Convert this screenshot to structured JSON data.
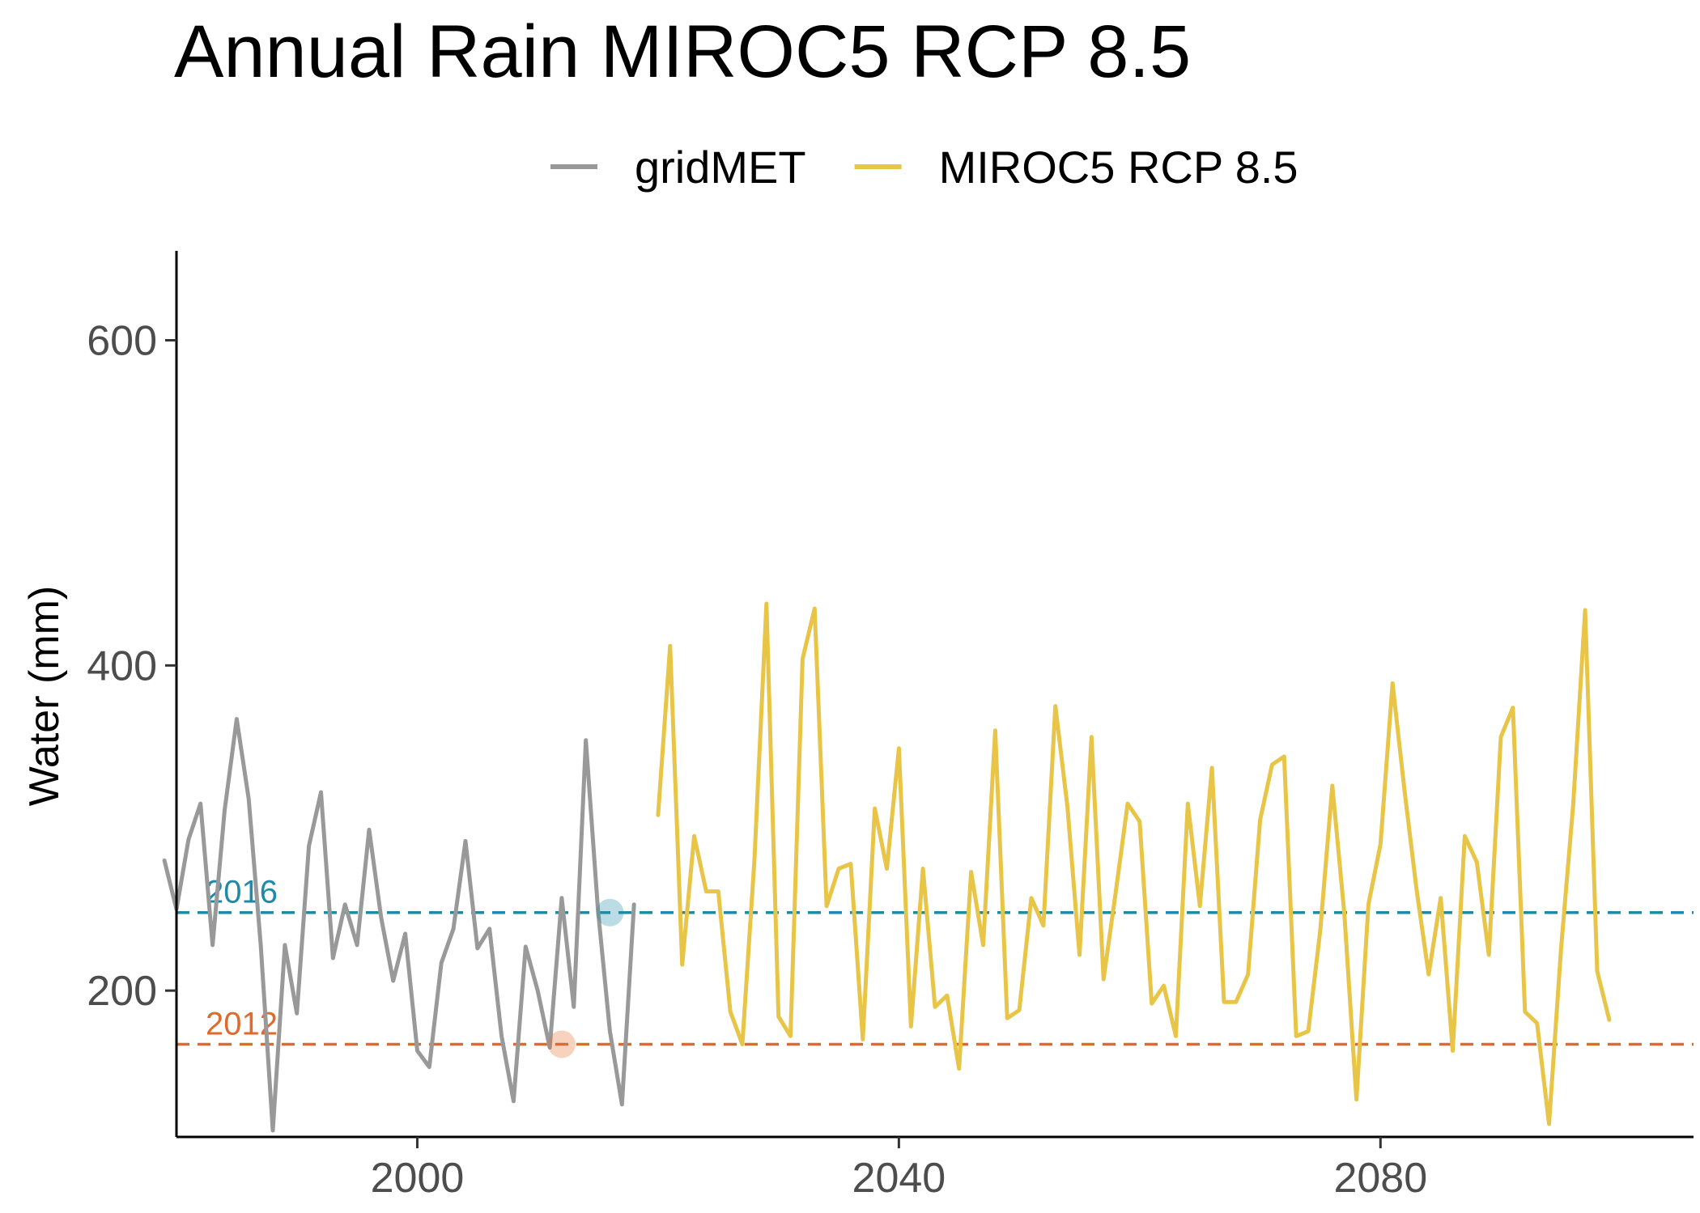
{
  "chart_data": {
    "type": "line",
    "title": "Annual Rain MIROC5 RCP 8.5",
    "ylabel": "Water (mm)",
    "xlabel": "",
    "xlim": [
      1980,
      2106
    ],
    "ylim": [
      110,
      655
    ],
    "x_ticks": [
      2000,
      2040,
      2080
    ],
    "y_ticks": [
      200,
      400,
      600
    ],
    "grid": false,
    "legend_position": "top",
    "colors": {
      "gridMET": "#999999",
      "MIROC5 RCP 8.5": "#E8C547",
      "ref_2016": "#1F8AA8",
      "ref_2012": "#E06A2B"
    },
    "series": [
      {
        "name": "gridMET",
        "x": [
          1979,
          1980,
          1981,
          1982,
          1983,
          1984,
          1985,
          1986,
          1987,
          1988,
          1989,
          1990,
          1991,
          1992,
          1993,
          1994,
          1995,
          1996,
          1997,
          1998,
          1999,
          2000,
          2001,
          2002,
          2003,
          2004,
          2005,
          2006,
          2007,
          2008,
          2009,
          2010,
          2011,
          2012,
          2013,
          2014,
          2015,
          2016,
          2017,
          2018
        ],
        "y": [
          280,
          250,
          293,
          315,
          228,
          311,
          367,
          318,
          228,
          114,
          228,
          186,
          289,
          322,
          220,
          253,
          228,
          299,
          245,
          206,
          235,
          163,
          153,
          217,
          238,
          292,
          226,
          238,
          172,
          132,
          227,
          200,
          165,
          257,
          190,
          354,
          250,
          175,
          130,
          253
        ]
      },
      {
        "name": "MIROC5 RCP 8.5",
        "x": [
          2020,
          2021,
          2022,
          2023,
          2024,
          2025,
          2026,
          2027,
          2028,
          2029,
          2030,
          2031,
          2032,
          2033,
          2034,
          2035,
          2036,
          2037,
          2038,
          2039,
          2040,
          2041,
          2042,
          2043,
          2044,
          2045,
          2046,
          2047,
          2048,
          2049,
          2050,
          2051,
          2052,
          2053,
          2054,
          2055,
          2056,
          2057,
          2058,
          2059,
          2060,
          2061,
          2062,
          2063,
          2064,
          2065,
          2066,
          2067,
          2068,
          2069,
          2070,
          2071,
          2072,
          2073,
          2074,
          2075,
          2076,
          2077,
          2078,
          2079,
          2080,
          2081,
          2082,
          2083,
          2084,
          2085,
          2086,
          2087,
          2088,
          2089,
          2090,
          2091,
          2092,
          2093,
          2094,
          2095,
          2096,
          2097,
          2098,
          2099
        ],
        "y": [
          308,
          412,
          216,
          295,
          261,
          261,
          187,
          167,
          280,
          438,
          184,
          172,
          404,
          435,
          252,
          275,
          278,
          170,
          312,
          275,
          349,
          178,
          275,
          190,
          197,
          152,
          273,
          228,
          360,
          183,
          188,
          257,
          240,
          375,
          313,
          222,
          356,
          207,
          260,
          315,
          304,
          192,
          203,
          172,
          315,
          252,
          337,
          193,
          193,
          210,
          305,
          339,
          344,
          172,
          175,
          237,
          326,
          247,
          133,
          253,
          290,
          389,
          323,
          262,
          210,
          257,
          163,
          295,
          279,
          222,
          356,
          374,
          187,
          180,
          118,
          226,
          314,
          434,
          212,
          182
        ]
      }
    ],
    "reference_lines": [
      {
        "label": "2016",
        "value": 248
      },
      {
        "label": "2012",
        "value": 167
      }
    ],
    "highlight_points": [
      {
        "x": 2016,
        "y": 248,
        "ref": "2016"
      },
      {
        "x": 2012,
        "y": 167,
        "ref": "2012"
      }
    ]
  }
}
